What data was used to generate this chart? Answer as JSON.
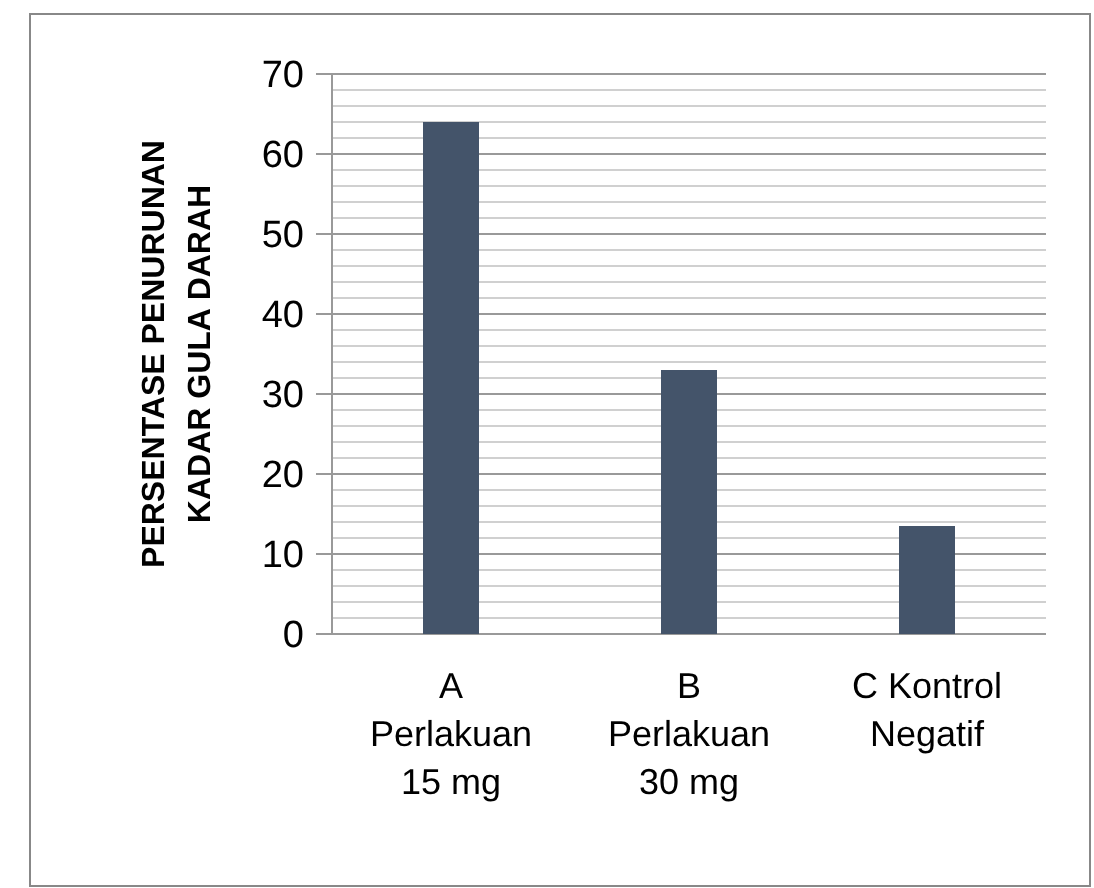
{
  "chart_data": {
    "type": "bar",
    "ylabel": "PERSENTASE PENURUNAN KADAR GULA DARAH",
    "categories": [
      "A Perlakuan 15 mg",
      "B Perlakuan 30 mg",
      "C Kontrol Negatif"
    ],
    "values": [
      64,
      33,
      13.5
    ],
    "color": "#44546a",
    "ylim": [
      0,
      70
    ],
    "yticks": [
      0,
      {
        "value": 2,
        "label": null
      },
      {
        "value": 4,
        "label": null
      },
      {
        "value": 6,
        "label": null
      },
      {
        "value": 8,
        "label": null
      },
      10,
      {
        "value": 12,
        "label": null
      },
      {
        "value": 14,
        "label": null
      },
      {
        "value": 16,
        "label": null
      },
      {
        "value": 18,
        "label": null
      },
      20,
      {
        "value": 22,
        "label": null
      },
      {
        "value": 24,
        "label": null
      },
      {
        "value": 26,
        "label": null
      },
      {
        "value": 28,
        "label": null
      },
      30,
      {
        "value": 32,
        "label": null
      },
      {
        "value": 34,
        "label": null
      },
      {
        "value": 36,
        "label": null
      },
      {
        "value": 38,
        "label": null
      },
      40,
      {
        "value": 42,
        "label": null
      },
      {
        "value": 44,
        "label": null
      },
      {
        "value": 46,
        "label": null
      },
      {
        "value": 48,
        "label": null
      },
      50,
      {
        "value": 52,
        "label": null
      },
      {
        "value": 54,
        "label": null
      },
      {
        "value": 56,
        "label": null
      },
      {
        "value": 58,
        "label": null
      },
      60,
      {
        "value": 62,
        "label": null
      },
      {
        "value": 64,
        "label": null
      },
      {
        "value": 66,
        "label": null
      },
      {
        "value": 68,
        "label": null
      },
      70
    ],
    "grid": true
  }
}
